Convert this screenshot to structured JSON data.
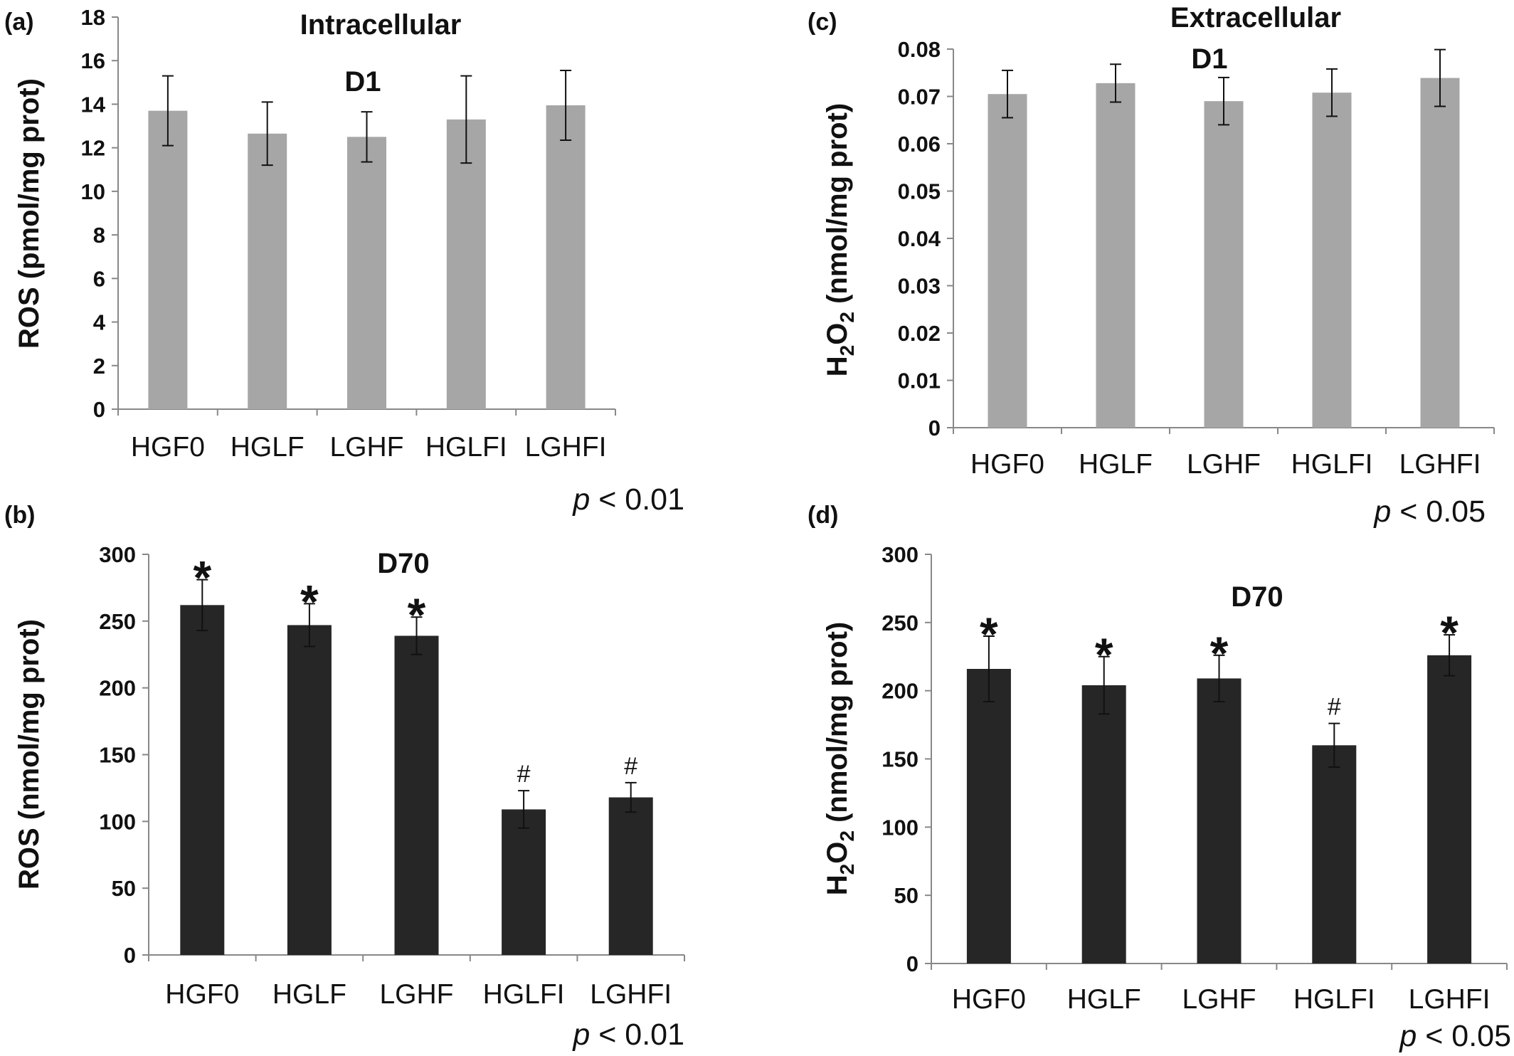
{
  "chart_data": [
    {
      "panel": "(a)",
      "type": "bar",
      "title": "Intracellular",
      "subtitle": "D1",
      "ylabel": "ROS (pmol/mg prot)",
      "ylabel_parts": [
        {
          "text": "ROS (pmol/mg prot)",
          "sub": false
        }
      ],
      "ylim": [
        0,
        18
      ],
      "yticks": [
        0,
        2,
        4,
        6,
        8,
        10,
        12,
        14,
        16,
        18
      ],
      "ytick_labels": [
        "0",
        "2",
        "4",
        "6",
        "8",
        "10",
        "12",
        "14",
        "16",
        "18"
      ],
      "categories": [
        "HGF0",
        "HGLF",
        "LGHF",
        "HGLFI",
        "LGHFI"
      ],
      "values": [
        13.7,
        12.65,
        12.5,
        13.3,
        13.95
      ],
      "errors": [
        1.6,
        1.45,
        1.15,
        2.0,
        1.6
      ],
      "annotations": [
        "",
        "",
        "",
        "",
        ""
      ],
      "bar_color": "#a6a6a6",
      "p_note": {
        "italic": "p",
        "rest": " < 0.01"
      }
    },
    {
      "panel": "(b)",
      "type": "bar",
      "title": "",
      "subtitle": "D70",
      "ylabel": "ROS (nmol/mg prot)",
      "ylabel_parts": [
        {
          "text": "ROS (nmol/mg prot)",
          "sub": false
        }
      ],
      "ylim": [
        0,
        300
      ],
      "yticks": [
        0,
        50,
        100,
        150,
        200,
        250,
        300
      ],
      "ytick_labels": [
        "0",
        "50",
        "100",
        "150",
        "200",
        "250",
        "300"
      ],
      "categories": [
        "HGF0",
        "HGLF",
        "LGHF",
        "HGLFI",
        "LGHFI"
      ],
      "values": [
        262,
        247,
        239,
        109,
        118
      ],
      "errors": [
        19,
        16,
        14,
        14,
        11
      ],
      "annotations": [
        "*",
        "*",
        "*",
        "#",
        "#"
      ],
      "bar_color": "#262626",
      "p_note": {
        "italic": "p",
        "rest": " < 0.01"
      }
    },
    {
      "panel": "(c)",
      "type": "bar",
      "title": "Extracellular",
      "subtitle": "D1",
      "ylabel": "H2O2 (nmol/mg prot)",
      "ylabel_parts": [
        {
          "text": "H",
          "sub": false
        },
        {
          "text": "2",
          "sub": true
        },
        {
          "text": "O",
          "sub": false
        },
        {
          "text": "2",
          "sub": true
        },
        {
          "text": " (nmol/mg prot)",
          "sub": false
        }
      ],
      "ylim": [
        0,
        0.08
      ],
      "yticks": [
        0,
        0.01,
        0.02,
        0.03,
        0.04,
        0.05,
        0.06,
        0.07,
        0.08
      ],
      "ytick_labels": [
        "0",
        "0.01",
        "0.02",
        "0.03",
        "0.04",
        "0.05",
        "0.06",
        "0.07",
        "0.08"
      ],
      "categories": [
        "HGF0",
        "HGLF",
        "LGHF",
        "HGLFI",
        "LGHFI"
      ],
      "values": [
        0.0705,
        0.0728,
        0.069,
        0.0708,
        0.0739
      ],
      "errors": [
        0.005,
        0.004,
        0.005,
        0.005,
        0.006
      ],
      "annotations": [
        "",
        "",
        "",
        "",
        ""
      ],
      "bar_color": "#a6a6a6",
      "p_note": {
        "italic": "p",
        "rest": " < 0.05"
      }
    },
    {
      "panel": "(d)",
      "type": "bar",
      "title": "",
      "subtitle": "D70",
      "ylabel": "H2O2 (nmol/mg prot)",
      "ylabel_parts": [
        {
          "text": "H",
          "sub": false
        },
        {
          "text": "2",
          "sub": true
        },
        {
          "text": "O",
          "sub": false
        },
        {
          "text": "2",
          "sub": true
        },
        {
          "text": " (nmol/mg prot)",
          "sub": false
        }
      ],
      "ylim": [
        0,
        300
      ],
      "yticks": [
        0,
        50,
        100,
        150,
        200,
        250,
        300
      ],
      "ytick_labels": [
        "0",
        "50",
        "100",
        "150",
        "200",
        "250",
        "300"
      ],
      "categories": [
        "HGF0",
        "HGLF",
        "LGHF",
        "HGLFI",
        "LGHFI"
      ],
      "values": [
        216,
        204,
        209,
        160,
        226
      ],
      "errors": [
        24,
        21,
        17,
        16,
        15
      ],
      "annotations": [
        "*",
        "*",
        "*",
        "#",
        "*"
      ],
      "bar_color": "#262626",
      "p_note": {
        "italic": "p",
        "rest": " < 0.05"
      }
    }
  ]
}
